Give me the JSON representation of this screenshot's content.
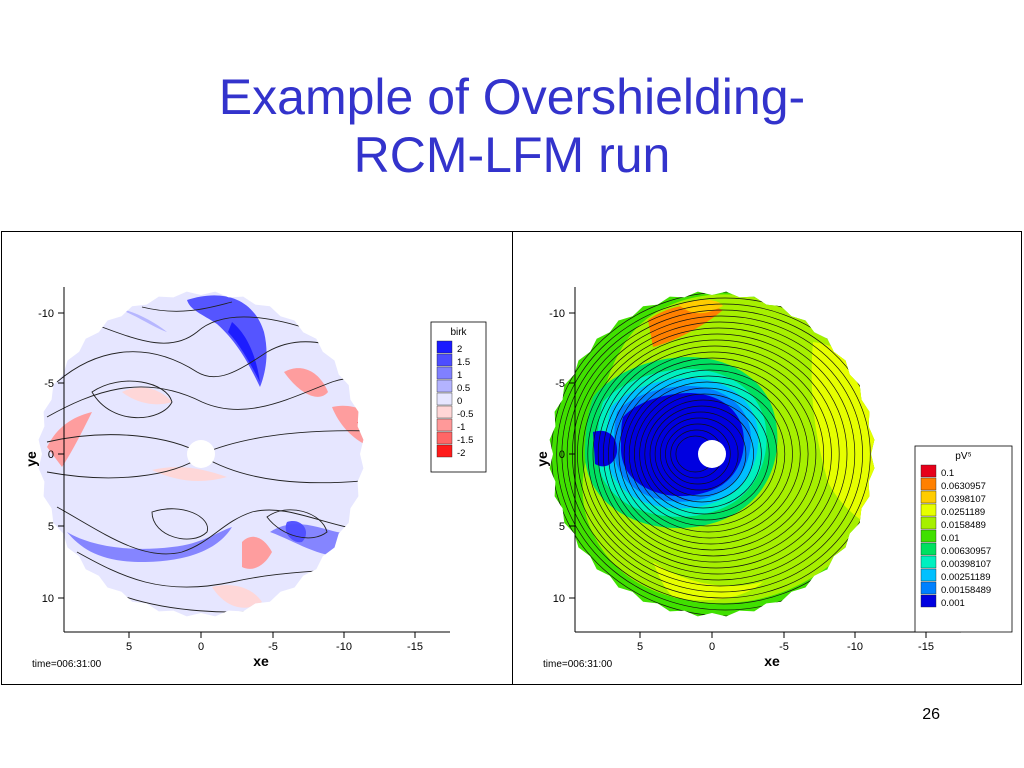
{
  "slide": {
    "title_line1": "Example of Overshielding-",
    "title_line2": "RCM-LFM run",
    "page_number": "26"
  },
  "colors": {
    "title": "#3333cc",
    "birk_scale": [
      "#1a1aff",
      "#4d4dff",
      "#8080ff",
      "#b3b3ff",
      "#e6e6ff",
      "#ffd6d6",
      "#ff9999",
      "#ff6666",
      "#ff1a1a"
    ],
    "pvg_scale": [
      "#e6001a",
      "#ff8000",
      "#ffcc00",
      "#e6ff00",
      "#a6f000",
      "#40e000",
      "#00e060",
      "#00f0c0",
      "#00c0ff",
      "#0080ff",
      "#0000e0"
    ]
  },
  "chart_data": [
    {
      "type": "heatmap",
      "title": "",
      "xlabel": "xe",
      "ylabel": "ye",
      "x_ticks": [
        "5",
        "0",
        "-5",
        "-10",
        "-15"
      ],
      "y_ticks": [
        "-10",
        "-5",
        "0",
        "5",
        "10"
      ],
      "x_reversed": true,
      "y_reversed": true,
      "legend_title": "birk",
      "legend_placement": "right",
      "legend_labels": [
        "2",
        "1.5",
        "1",
        "0.5",
        "0",
        "-0.5",
        "-1",
        "-1.5",
        "-2"
      ],
      "annotation": "time=006:31:00"
    },
    {
      "type": "heatmap",
      "title": "",
      "xlabel": "xe",
      "ylabel": "ye",
      "x_ticks": [
        "5",
        "0",
        "-5",
        "-10",
        "-15"
      ],
      "y_ticks": [
        "-10",
        "-5",
        "0",
        "5",
        "10"
      ],
      "x_reversed": true,
      "y_reversed": true,
      "legend_title": "pV⁵",
      "legend_placement": "right",
      "legend_labels": [
        "0.1",
        "0.0630957",
        "0.0398107",
        "0.0251189",
        "0.0158489",
        "0.01",
        "0.00630957",
        "0.00398107",
        "0.00251189",
        "0.00158489",
        "0.001"
      ],
      "annotation": "time=006:31:00"
    }
  ]
}
